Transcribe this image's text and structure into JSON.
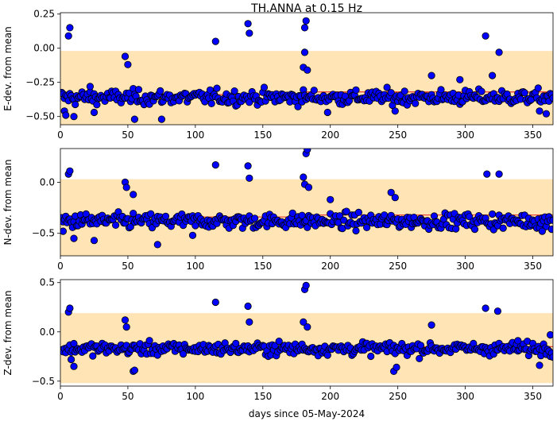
{
  "chart_data": {
    "title": "TH.ANNA at 0.15 Hz",
    "xlabel": "days since 05-May-2024",
    "xlim": [
      0,
      365
    ],
    "xticks": [
      0,
      50,
      100,
      150,
      200,
      250,
      300,
      350
    ],
    "marker": {
      "face_color": "#0000ff",
      "edge_color": "#000000"
    },
    "band_color": "#ffe4b5",
    "trend_color": "#e8483a",
    "grid": false,
    "legend": "none",
    "panels": [
      {
        "type": "scatter",
        "ylabel": "E-dev. from mean",
        "ylim": [
          -0.56,
          0.26
        ],
        "yticks": [
          0.25,
          0.0,
          -0.25,
          -0.5
        ],
        "ytick_labels": [
          "0.25",
          "0.00",
          "−0.25",
          "−0.50"
        ],
        "band": [
          -0.68,
          -0.02
        ],
        "trend": [
          [
            0,
            -0.35
          ],
          [
            55,
            -0.35
          ],
          [
            55,
            -0.37
          ],
          [
            85,
            -0.37
          ],
          [
            85,
            -0.34
          ],
          [
            180,
            -0.34
          ],
          [
            180,
            -0.32
          ],
          [
            365,
            -0.32
          ]
        ],
        "center": -0.36,
        "spread": 0.05,
        "outliers": [
          [
            3,
            -0.46
          ],
          [
            4,
            -0.49
          ],
          [
            6,
            0.09
          ],
          [
            7,
            0.15
          ],
          [
            10,
            -0.5
          ],
          [
            22,
            -0.28
          ],
          [
            25,
            -0.47
          ],
          [
            48,
            -0.06
          ],
          [
            50,
            -0.12
          ],
          [
            55,
            -0.52
          ],
          [
            75,
            -0.52
          ],
          [
            115,
            0.05
          ],
          [
            139,
            0.18
          ],
          [
            140,
            0.11
          ],
          [
            181,
            0.15
          ],
          [
            182,
            0.2
          ],
          [
            181,
            -0.03
          ],
          [
            180,
            -0.14
          ],
          [
            183,
            -0.16
          ],
          [
            198,
            -0.47
          ],
          [
            248,
            -0.46
          ],
          [
            275,
            -0.2
          ],
          [
            296,
            -0.23
          ],
          [
            315,
            0.09
          ],
          [
            320,
            -0.2
          ],
          [
            325,
            -0.03
          ],
          [
            355,
            -0.46
          ],
          [
            360,
            -0.48
          ]
        ]
      },
      {
        "type": "scatter",
        "ylabel": "N-dev. from mean",
        "ylim": [
          -0.72,
          0.33
        ],
        "yticks": [
          0.0,
          -0.5
        ],
        "ytick_labels": [
          "0.0",
          "−0.5"
        ],
        "band": [
          -0.72,
          0.03
        ],
        "trend": [
          [
            0,
            -0.33
          ],
          [
            55,
            -0.33
          ],
          [
            55,
            -0.37
          ],
          [
            85,
            -0.37
          ],
          [
            85,
            -0.34
          ],
          [
            180,
            -0.34
          ],
          [
            180,
            -0.32
          ],
          [
            365,
            -0.32
          ]
        ],
        "center": -0.38,
        "spread": 0.07,
        "outliers": [
          [
            6,
            0.08
          ],
          [
            7,
            0.11
          ],
          [
            2,
            -0.48
          ],
          [
            10,
            -0.55
          ],
          [
            25,
            -0.57
          ],
          [
            48,
            0.0
          ],
          [
            49,
            -0.05
          ],
          [
            54,
            -0.12
          ],
          [
            72,
            -0.61
          ],
          [
            98,
            -0.52
          ],
          [
            115,
            0.17
          ],
          [
            139,
            0.16
          ],
          [
            140,
            0.04
          ],
          [
            180,
            0.05
          ],
          [
            181,
            -0.02
          ],
          [
            182,
            0.28
          ],
          [
            183,
            0.32
          ],
          [
            184,
            -0.05
          ],
          [
            200,
            -0.17
          ],
          [
            245,
            -0.1
          ],
          [
            248,
            -0.15
          ],
          [
            316,
            0.08
          ],
          [
            325,
            0.08
          ],
          [
            357,
            -0.48
          ]
        ]
      },
      {
        "type": "scatter",
        "ylabel": "Z-dev. from mean",
        "ylim": [
          -0.55,
          0.53
        ],
        "yticks": [
          0.5,
          0.0,
          -0.5
        ],
        "ytick_labels": [
          "0.5",
          "0.0",
          "−0.5"
        ],
        "band": [
          -0.52,
          0.19
        ],
        "trend": [
          [
            0,
            -0.16
          ],
          [
            180,
            -0.16
          ],
          [
            180,
            -0.15
          ],
          [
            365,
            -0.15
          ]
        ],
        "center": -0.17,
        "spread": 0.06,
        "outliers": [
          [
            6,
            0.2
          ],
          [
            7,
            0.24
          ],
          [
            8,
            -0.28
          ],
          [
            10,
            -0.35
          ],
          [
            48,
            0.12
          ],
          [
            49,
            0.05
          ],
          [
            54,
            -0.4
          ],
          [
            55,
            -0.39
          ],
          [
            115,
            0.3
          ],
          [
            139,
            0.26
          ],
          [
            140,
            0.1
          ],
          [
            180,
            0.1
          ],
          [
            181,
            0.43
          ],
          [
            182,
            0.47
          ],
          [
            183,
            0.05
          ],
          [
            247,
            -0.4
          ],
          [
            249,
            -0.36
          ],
          [
            275,
            0.07
          ],
          [
            315,
            0.24
          ],
          [
            324,
            0.21
          ],
          [
            339,
            -0.09
          ],
          [
            355,
            -0.34
          ],
          [
            363,
            -0.03
          ]
        ]
      }
    ]
  }
}
